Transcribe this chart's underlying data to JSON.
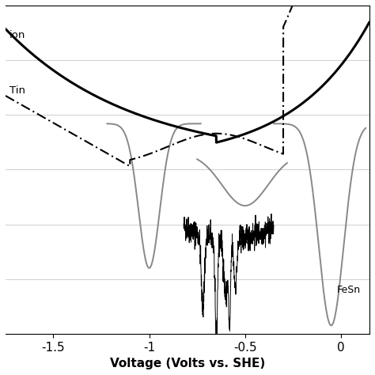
{
  "xlabel": "Voltage (Volts vs. SHE)",
  "xlim": [
    -1.75,
    0.15
  ],
  "ylim": [
    -1.0,
    1.0
  ],
  "x_ticks": [
    -1.5,
    -1.0,
    -0.5,
    0.0
  ],
  "background_color": "#ffffff",
  "label_ion": "ion",
  "label_tin": "Tin",
  "label_fesn": "FeSn",
  "n_gridlines": 7
}
